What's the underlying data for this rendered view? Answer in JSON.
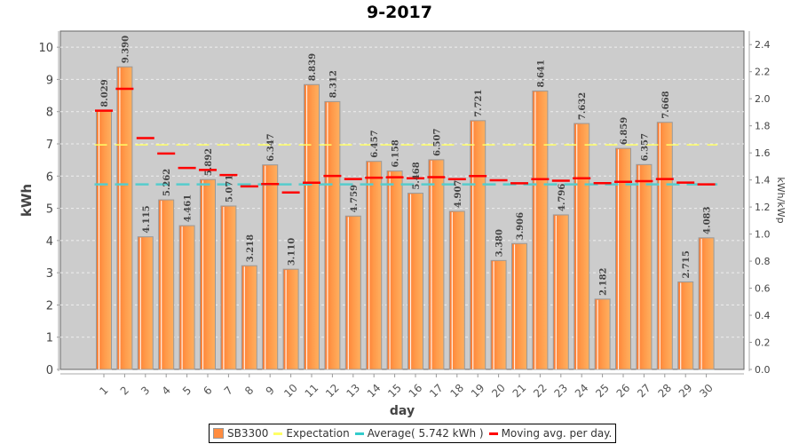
{
  "chart_data": {
    "type": "bar",
    "title": "9-2017",
    "xlabel": "day",
    "ylabel": "kWh",
    "y2label": "kWh/kWp",
    "ylim": [
      0,
      10.5
    ],
    "y2lim": [
      0,
      2.5
    ],
    "yticks": [
      "0",
      "1",
      "2",
      "3",
      "4",
      "5",
      "6",
      "7",
      "8",
      "9",
      "10"
    ],
    "y2ticks": [
      "0.0",
      "0.2",
      "0.4",
      "0.6",
      "0.8",
      "1.0",
      "1.2",
      "1.4",
      "1.6",
      "1.8",
      "2.0",
      "2.2",
      "2.4"
    ],
    "grid": true,
    "legend_position": "bottom",
    "categories": [
      "1",
      "2",
      "3",
      "4",
      "5",
      "6",
      "7",
      "8",
      "9",
      "10",
      "11",
      "12",
      "13",
      "14",
      "15",
      "16",
      "17",
      "18",
      "19",
      "20",
      "21",
      "22",
      "23",
      "24",
      "25",
      "26",
      "27",
      "28",
      "29",
      "30"
    ],
    "series": [
      {
        "name": "SB3300",
        "type": "bar",
        "color": "#ff8c40",
        "values": [
          8.029,
          9.39,
          4.115,
          5.262,
          4.461,
          5.892,
          5.071,
          3.218,
          6.347,
          3.11,
          8.839,
          8.312,
          4.759,
          6.457,
          6.158,
          5.468,
          6.507,
          4.907,
          7.721,
          3.38,
          3.906,
          8.641,
          4.796,
          7.632,
          2.182,
          6.859,
          6.357,
          7.668,
          2.715,
          4.083
        ],
        "labels": [
          "8.029",
          "9.390",
          "4.115",
          "5.262",
          "4.461",
          "5.892",
          "5.071",
          "3.218",
          "6.347",
          "3.110",
          "8.839",
          "8.312",
          "4.759",
          "6.457",
          "6.158",
          "5.468",
          "6.507",
          "4.907",
          "7.721",
          "3.380",
          "3.906",
          "8.641",
          "4.796",
          "7.632",
          "2.182",
          "6.859",
          "6.357",
          "7.668",
          "2.715",
          "4.083"
        ]
      },
      {
        "name": "Expectation",
        "type": "dashed-line",
        "color": "#ffff66",
        "value": 6.97
      },
      {
        "name": "Average( 5.742 kWh )",
        "type": "dashed-line",
        "color": "#55cccc",
        "value": 5.742
      },
      {
        "name": "Moving avg. per day.",
        "type": "step-marks",
        "color": "#ff0000",
        "values": [
          8.029,
          8.71,
          7.178,
          6.699,
          6.251,
          6.191,
          6.031,
          5.68,
          5.754,
          5.49,
          5.795,
          6.005,
          5.909,
          5.948,
          5.962,
          5.931,
          5.965,
          5.906,
          6.001,
          5.87,
          5.776,
          5.906,
          5.857,
          5.931,
          5.781,
          5.822,
          5.842,
          5.907,
          5.797,
          5.742
        ]
      }
    ]
  },
  "legend": {
    "items": [
      {
        "label": "SB3300",
        "color": "#ff8c40",
        "kind": "box"
      },
      {
        "label": "Expectation",
        "color": "#ffff66",
        "kind": "line"
      },
      {
        "label": "Average( 5.742 kWh )",
        "color": "#55cccc",
        "kind": "line"
      },
      {
        "label": "Moving avg. per day.",
        "color": "#ff0000",
        "kind": "line"
      }
    ]
  }
}
